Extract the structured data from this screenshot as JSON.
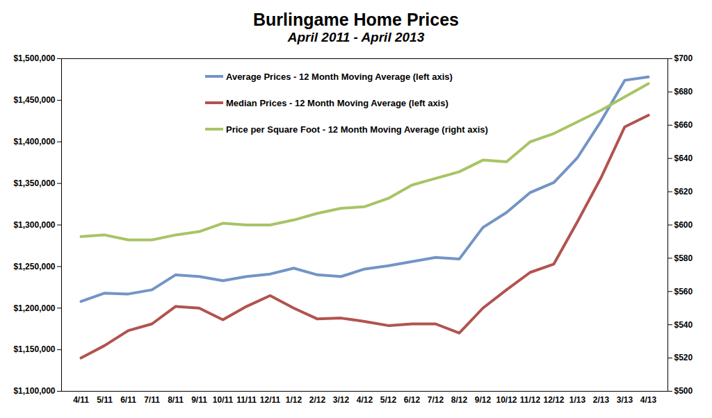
{
  "chart_data": {
    "type": "line",
    "title": "Burlingame Home Prices",
    "subtitle": "April 2011 - April 2013",
    "categories": [
      "4/11",
      "5/11",
      "6/11",
      "7/11",
      "8/11",
      "9/11",
      "10/11",
      "11/11",
      "12/11",
      "1/12",
      "2/12",
      "3/12",
      "4/12",
      "5/12",
      "6/12",
      "7/12",
      "8/12",
      "9/12",
      "10/12",
      "11/12",
      "12/12",
      "1/13",
      "2/13",
      "3/13",
      "4/13"
    ],
    "series": [
      {
        "name": "Average Prices - 12 Month Moving Average (left axis)",
        "color": "#7394c6",
        "values": [
          1208000,
          1218000,
          1217000,
          1222000,
          1240000,
          1238000,
          1233000,
          1238000,
          1241000,
          1248000,
          1240000,
          1238000,
          1247000,
          1251000,
          1256000,
          1261000,
          1259000,
          1297000,
          1315000,
          1339000,
          1351000,
          1381000,
          1425000,
          1474000,
          1478000
        ]
      },
      {
        "name": "Median Prices - 12 Month Moving Average (left axis)",
        "color": "#b1534f",
        "values": [
          1140000,
          1155000,
          1173000,
          1181000,
          1202000,
          1200000,
          1186000,
          1202000,
          1215000,
          1200000,
          1187000,
          1188000,
          1184000,
          1179000,
          1181000,
          1181000,
          1170000,
          1200000,
          1222000,
          1243000,
          1253000,
          1304000,
          1357000,
          1418000,
          1432000
        ]
      },
      {
        "name": "Price per Square Foot - 12 Month Moving Average (right axis)",
        "color": "#a8c466",
        "axis": "y2",
        "values": [
          593,
          594,
          591,
          591,
          594,
          596,
          601,
          600,
          600,
          603,
          607,
          610,
          611,
          616,
          624,
          628,
          632,
          639,
          638,
          650,
          655,
          662,
          669,
          677,
          685
        ]
      }
    ],
    "ylim": [
      1100000,
      1500000
    ],
    "yticks": [
      {
        "value": 1100000,
        "label": "$1,100,000"
      },
      {
        "value": 1150000,
        "label": "$1,150,000"
      },
      {
        "value": 1200000,
        "label": "$1,200,000"
      },
      {
        "value": 1250000,
        "label": "$1,250,000"
      },
      {
        "value": 1300000,
        "label": "$1,300,000"
      },
      {
        "value": 1350000,
        "label": "$1,350,000"
      },
      {
        "value": 1400000,
        "label": "$1,400,000"
      },
      {
        "value": 1450000,
        "label": "$1,450,000"
      },
      {
        "value": 1500000,
        "label": "$1,500,000"
      }
    ],
    "y2lim": [
      500,
      700
    ],
    "y2ticks": [
      {
        "value": 500,
        "label": "$500"
      },
      {
        "value": 520,
        "label": "$520"
      },
      {
        "value": 540,
        "label": "$540"
      },
      {
        "value": 560,
        "label": "$560"
      },
      {
        "value": 580,
        "label": "$580"
      },
      {
        "value": 600,
        "label": "$600"
      },
      {
        "value": 620,
        "label": "$620"
      },
      {
        "value": 640,
        "label": "$640"
      },
      {
        "value": 660,
        "label": "$660"
      },
      {
        "value": 680,
        "label": "$680"
      },
      {
        "value": 700,
        "label": "$700"
      }
    ],
    "grid": false,
    "legend": "top"
  }
}
